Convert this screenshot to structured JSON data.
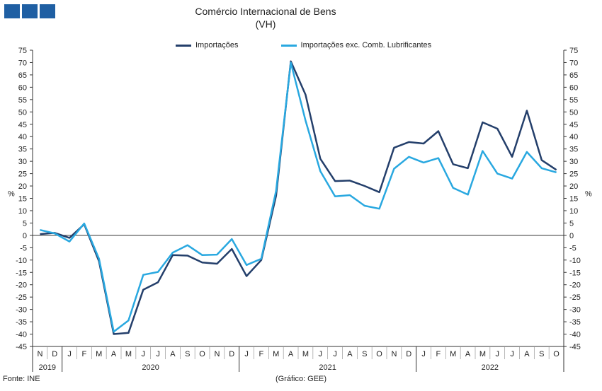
{
  "header": {
    "title": "Comércio Internacional de Bens",
    "subtitle": "(VH)"
  },
  "footer": {
    "source": "Fonte: INE",
    "credit": "(Gráfico: GEE)"
  },
  "chart_data": {
    "type": "line",
    "title": "Comércio Internacional de Bens",
    "subtitle": "(VH)",
    "ylabel": "%",
    "ylim": [
      -45,
      75
    ],
    "yticks": [
      -45,
      -40,
      -35,
      -30,
      -25,
      -20,
      -15,
      -10,
      -5,
      0,
      5,
      10,
      15,
      20,
      25,
      30,
      35,
      40,
      45,
      50,
      55,
      60,
      65,
      70,
      75
    ],
    "legend_position": "top",
    "x": [
      "N",
      "D",
      "J",
      "F",
      "M",
      "A",
      "M",
      "J",
      "J",
      "A",
      "S",
      "O",
      "N",
      "D",
      "J",
      "F",
      "M",
      "A",
      "M",
      "J",
      "J",
      "A",
      "S",
      "O",
      "N",
      "D",
      "J",
      "F",
      "M",
      "A",
      "M",
      "J",
      "J",
      "A",
      "S",
      "O"
    ],
    "year_groups": [
      {
        "label": "2019",
        "count": 2
      },
      {
        "label": "2020",
        "count": 12
      },
      {
        "label": "2021",
        "count": 12
      },
      {
        "label": "2022",
        "count": 10
      }
    ],
    "series": [
      {
        "name": "Importações",
        "color": "#243f6b",
        "values": [
          0.5,
          1.0,
          -1.0,
          4.5,
          -10.5,
          -40.0,
          -39.5,
          -22.0,
          -19.0,
          -8.0,
          -8.2,
          -11.0,
          -11.5,
          -5.5,
          -16.5,
          -10.0,
          16.0,
          70.5,
          57.0,
          31.0,
          22.0,
          22.2,
          20.0,
          17.5,
          35.5,
          37.8,
          37.2,
          42.2,
          28.8,
          27.2,
          45.8,
          43.2,
          31.8,
          50.5,
          30.5,
          26.5
        ],
        "stroke_width": 2.5
      },
      {
        "name": "Importações exc. Comb. Lubrificantes",
        "color": "#29a8e0",
        "values": [
          2.2,
          0.8,
          -2.5,
          4.8,
          -9.5,
          -39.0,
          -34.5,
          -16.0,
          -14.8,
          -7.0,
          -4.0,
          -8.0,
          -7.8,
          -1.5,
          -12.0,
          -9.5,
          18.0,
          70.0,
          46.5,
          26.0,
          15.8,
          16.3,
          12.0,
          10.8,
          27.0,
          31.8,
          29.5,
          31.3,
          19.2,
          16.5,
          34.2,
          25.0,
          23.0,
          33.8,
          27.2,
          25.5
        ],
        "stroke_width": 2.5
      }
    ]
  }
}
